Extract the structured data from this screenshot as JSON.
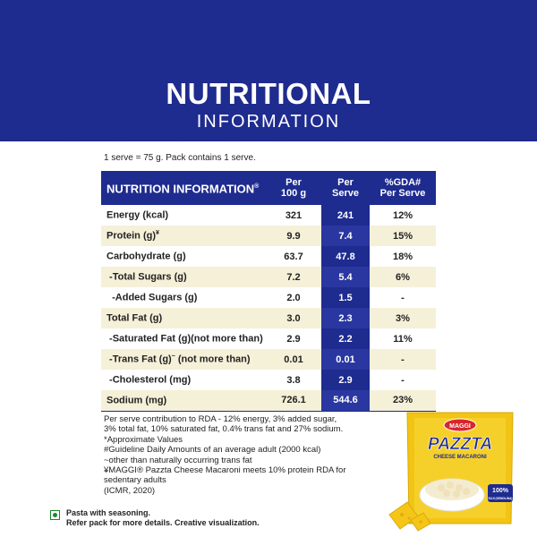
{
  "header": {
    "title": "NUTRITIONAL",
    "subtitle": "INFORMATION"
  },
  "serve_note": "1 serve = 75 g. Pack contains 1 serve.",
  "table": {
    "head": {
      "c0": "NUTRITION INFORMATION",
      "c0_mark": "®",
      "c1a": "Per",
      "c1b": "100 g",
      "c2a": "Per",
      "c2b": "Serve",
      "c3a": "%GDA#",
      "c3b": "Per Serve"
    },
    "rows": [
      {
        "label": "Energy (kcal)",
        "sup": "",
        "tail": "",
        "per100": "321",
        "serve": "241",
        "gda": "12%"
      },
      {
        "label": "Protein (g)",
        "sup": "¥",
        "tail": "",
        "per100": "9.9",
        "serve": "7.4",
        "gda": "15%"
      },
      {
        "label": "Carbohydrate (g)",
        "sup": "",
        "tail": "",
        "per100": "63.7",
        "serve": "47.8",
        "gda": "18%"
      },
      {
        "label": " -Total Sugars (g)",
        "sup": "",
        "tail": "",
        "per100": "7.2",
        "serve": "5.4",
        "gda": "6%"
      },
      {
        "label": "  -Added Sugars (g)",
        "sup": "",
        "tail": "",
        "per100": "2.0",
        "serve": "1.5",
        "gda": "-"
      },
      {
        "label": "Total Fat (g)",
        "sup": "",
        "tail": "",
        "per100": "3.0",
        "serve": "2.3",
        "gda": "3%"
      },
      {
        "label": " -Saturated Fat (g)(not more than)",
        "sup": "",
        "tail": "",
        "per100": "2.9",
        "serve": "2.2",
        "gda": "11%"
      },
      {
        "label": " -Trans Fat (g)",
        "sup": "~",
        "tail": " (not more than)",
        "per100": "0.01",
        "serve": "0.01",
        "gda": "-"
      },
      {
        "label": " -Cholesterol (mg)",
        "sup": "",
        "tail": "",
        "per100": "3.8",
        "serve": "2.9",
        "gda": "-"
      },
      {
        "label": "Sodium (mg)",
        "sup": "",
        "tail": "",
        "per100": "726.1",
        "serve": "544.6",
        "gda": "23%"
      }
    ]
  },
  "footnotes": [
    "Per serve contribution to RDA - 12% energy, 3% added sugar,",
    "3% total fat, 10% saturated fat, 0.4% trans fat and 27% sodium.",
    "*Approximate Values",
    "#Guideline Daily Amounts of an average adult (2000 kcal)",
    "~other than naturally occurring trans fat",
    "¥MAGGI® Pazzta Cheese Macaroni meets 10% protein RDA for sedentary adults",
    "(ICMR, 2020)"
  ],
  "bottom_note": {
    "line1": "Pasta with seasoning.",
    "line2": "Refer pack for more details. Creative visualization."
  },
  "pack": {
    "brand": "MAGGI",
    "name": "PAZZTA",
    "variant": "CHEESE MACARONI",
    "badge_line1": "100%",
    "badge_line2": "SUJI (SEMOLINA)"
  },
  "colors": {
    "navy": "#1e2b8f",
    "cream": "#f5f0d8",
    "veg_green": "#1a8a2a",
    "pack_yellow": "#f2c414",
    "brand_red": "#d8262b"
  }
}
